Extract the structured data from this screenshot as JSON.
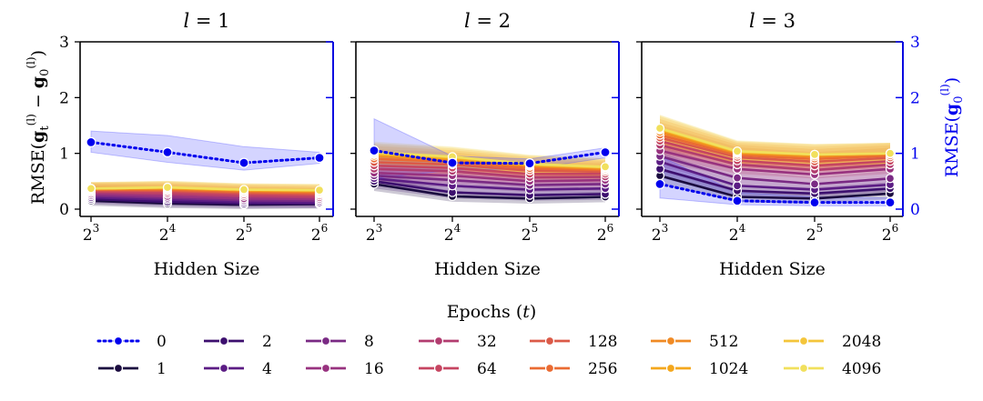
{
  "chart_data": {
    "type": "line",
    "panels": [
      {
        "title": "l = 1",
        "xlabel": "Hidden Size",
        "x": [
          "2^3",
          "2^4",
          "2^5",
          "2^6"
        ],
        "ylim": [
          0,
          3
        ],
        "series": [
          {
            "name": "0",
            "values": [
              1.2,
              1.02,
              0.83,
              0.92
            ],
            "band": [
              [
                1.02,
                1.4
              ],
              [
                0.84,
                1.32
              ],
              [
                0.7,
                1.12
              ],
              [
                0.82,
                1.02
              ]
            ],
            "axis": "left"
          },
          {
            "name": "1",
            "values": [
              0.15,
              0.1,
              0.08,
              0.09
            ]
          },
          {
            "name": "2",
            "values": [
              0.18,
              0.13,
              0.1,
              0.1
            ]
          },
          {
            "name": "4",
            "values": [
              0.21,
              0.17,
              0.13,
              0.12
            ]
          },
          {
            "name": "8",
            "values": [
              0.24,
              0.2,
              0.16,
              0.15
            ]
          },
          {
            "name": "16",
            "values": [
              0.27,
              0.23,
              0.19,
              0.18
            ]
          },
          {
            "name": "32",
            "values": [
              0.3,
              0.27,
              0.23,
              0.21
            ]
          },
          {
            "name": "64",
            "values": [
              0.32,
              0.3,
              0.26,
              0.24
            ]
          },
          {
            "name": "128",
            "values": [
              0.34,
              0.33,
              0.29,
              0.27
            ]
          },
          {
            "name": "256",
            "values": [
              0.35,
              0.35,
              0.31,
              0.29
            ]
          },
          {
            "name": "512",
            "values": [
              0.36,
              0.37,
              0.33,
              0.31
            ]
          },
          {
            "name": "1024",
            "values": [
              0.37,
              0.38,
              0.34,
              0.33
            ]
          },
          {
            "name": "2048",
            "values": [
              0.37,
              0.39,
              0.35,
              0.34
            ]
          },
          {
            "name": "4096",
            "values": [
              0.37,
              0.39,
              0.35,
              0.34
            ]
          }
        ]
      },
      {
        "title": "l = 2",
        "xlabel": "Hidden Size",
        "x": [
          "2^3",
          "2^4",
          "2^5",
          "2^6"
        ],
        "ylim": [
          0,
          3
        ],
        "series": [
          {
            "name": "0",
            "values": [
              1.05,
              0.83,
              0.82,
              1.02
            ],
            "band": [
              [
                0.55,
                1.62
              ],
              [
                0.7,
                0.95
              ],
              [
                0.72,
                0.9
              ],
              [
                0.92,
                1.1
              ]
            ],
            "axis": "right"
          },
          {
            "name": "1",
            "values": [
              0.45,
              0.23,
              0.19,
              0.22
            ]
          },
          {
            "name": "2",
            "values": [
              0.5,
              0.3,
              0.25,
              0.27
            ]
          },
          {
            "name": "4",
            "values": [
              0.55,
              0.42,
              0.35,
              0.37
            ]
          },
          {
            "name": "8",
            "values": [
              0.6,
              0.52,
              0.43,
              0.45
            ]
          },
          {
            "name": "16",
            "values": [
              0.65,
              0.6,
              0.5,
              0.52
            ]
          },
          {
            "name": "32",
            "values": [
              0.72,
              0.68,
              0.57,
              0.58
            ]
          },
          {
            "name": "64",
            "values": [
              0.78,
              0.74,
              0.63,
              0.63
            ]
          },
          {
            "name": "128",
            "values": [
              0.84,
              0.8,
              0.69,
              0.67
            ]
          },
          {
            "name": "256",
            "values": [
              0.9,
              0.85,
              0.73,
              0.7
            ]
          },
          {
            "name": "512",
            "values": [
              0.95,
              0.88,
              0.77,
              0.72
            ]
          },
          {
            "name": "1024",
            "values": [
              0.98,
              0.91,
              0.79,
              0.74
            ]
          },
          {
            "name": "2048",
            "values": [
              1.0,
              0.93,
              0.8,
              0.75
            ]
          },
          {
            "name": "4096",
            "values": [
              1.02,
              0.94,
              0.81,
              0.76
            ]
          }
        ]
      },
      {
        "title": "l = 3",
        "xlabel": "Hidden Size",
        "x": [
          "2^3",
          "2^4",
          "2^5",
          "2^6"
        ],
        "ylim": [
          0,
          3
        ],
        "y2label": "RMSE(g0(l))",
        "y2lim": [
          0,
          3
        ],
        "series": [
          {
            "name": "0",
            "values": [
              0.45,
              0.15,
              0.12,
              0.12
            ],
            "band": [
              [
                0.2,
                0.95
              ],
              [
                0.08,
                0.3
              ],
              [
                0.06,
                0.22
              ],
              [
                0.06,
                0.2
              ]
            ],
            "axis": "right"
          },
          {
            "name": "1",
            "values": [
              0.6,
              0.22,
              0.19,
              0.28
            ]
          },
          {
            "name": "2",
            "values": [
              0.72,
              0.33,
              0.28,
              0.37
            ]
          },
          {
            "name": "4",
            "values": [
              0.85,
              0.42,
              0.35,
              0.44
            ]
          },
          {
            "name": "8",
            "values": [
              0.95,
              0.56,
              0.45,
              0.55
            ]
          },
          {
            "name": "16",
            "values": [
              1.05,
              0.72,
              0.62,
              0.72
            ]
          },
          {
            "name": "32",
            "values": [
              1.15,
              0.8,
              0.7,
              0.8
            ]
          },
          {
            "name": "64",
            "values": [
              1.22,
              0.87,
              0.78,
              0.86
            ]
          },
          {
            "name": "128",
            "values": [
              1.28,
              0.93,
              0.85,
              0.92
            ]
          },
          {
            "name": "256",
            "values": [
              1.33,
              0.97,
              0.9,
              0.96
            ]
          },
          {
            "name": "512",
            "values": [
              1.38,
              1.0,
              0.94,
              0.99
            ]
          },
          {
            "name": "1024",
            "values": [
              1.42,
              1.02,
              0.97,
              1.0
            ]
          },
          {
            "name": "2048",
            "values": [
              1.44,
              1.03,
              0.98,
              1.0
            ]
          },
          {
            "name": "4096",
            "values": [
              1.45,
              1.04,
              0.98,
              1.0
            ]
          }
        ]
      }
    ],
    "ylabel_left": "RMSE(gt(l) − g0(l))",
    "yticks": [
      "0",
      "1",
      "2",
      "3"
    ],
    "legend": {
      "title": "Epochs (t)",
      "placement": "bottom",
      "entries": [
        "0",
        "1",
        "2",
        "4",
        "8",
        "16",
        "32",
        "64",
        "128",
        "256",
        "512",
        "1024",
        "2048",
        "4096"
      ]
    },
    "colors": {
      "0": "#0000ee",
      "1": "#1a0b3f",
      "2": "#3c0f6e",
      "4": "#5b1c84",
      "8": "#7a2a84",
      "16": "#98327f",
      "32": "#b23c6f",
      "64": "#c64561",
      "128": "#db5a48",
      "256": "#ea6b32",
      "512": "#f08a24",
      "1024": "#f4a71c",
      "2048": "#f4c53a",
      "4096": "#f1e05c"
    }
  }
}
